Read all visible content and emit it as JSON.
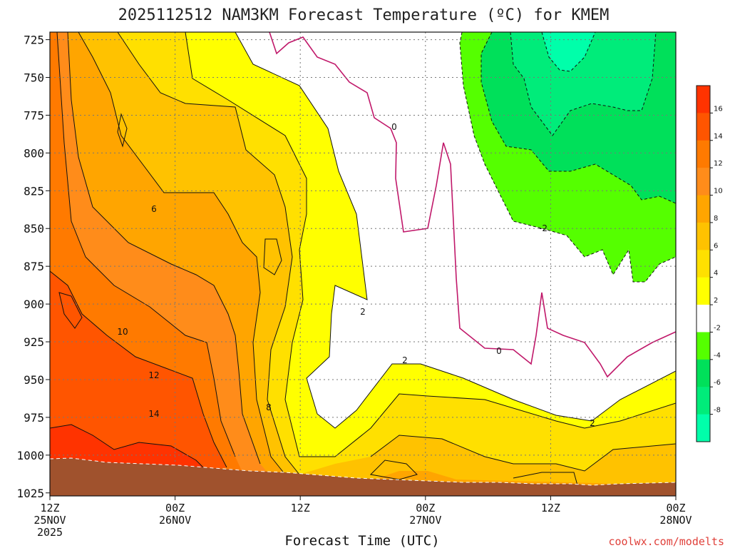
{
  "chart_data": {
    "type": "heatmap",
    "title": "2025112512 NAM3KM Forecast Temperature (ºC) for KMEM",
    "xlabel": "Forecast Time (UTC)",
    "ylabel": "",
    "credit": "coolwx.com/modelts",
    "y_ticks": [
      "725",
      "750",
      "775",
      "800",
      "825",
      "850",
      "875",
      "900",
      "925",
      "950",
      "975",
      "1000",
      "1025"
    ],
    "x_ticks": [
      {
        "line1": "12Z",
        "line2": "25NOV",
        "line3": "2025"
      },
      {
        "line1": "00Z",
        "line2": "26NOV",
        "line3": ""
      },
      {
        "line1": "12Z",
        "line2": "",
        "line3": ""
      },
      {
        "line1": "00Z",
        "line2": "27NOV",
        "line3": ""
      },
      {
        "line1": "12Z",
        "line2": "",
        "line3": ""
      },
      {
        "line1": "00Z",
        "line2": "28NOV",
        "line3": ""
      }
    ],
    "y_range_hPa": [
      720,
      1027
    ],
    "x_range_hours": [
      0,
      60
    ],
    "contour_labels": [
      "6",
      "10",
      "12",
      "14",
      "8",
      "2",
      "0",
      "2",
      "0",
      "2",
      "-2"
    ],
    "colorbar": {
      "labels": [
        "16",
        "14",
        "12",
        "10",
        "8",
        "6",
        "4",
        "2",
        "-2",
        "-4",
        "-6",
        "-8"
      ],
      "colors": [
        "#ff3300",
        "#ff5500",
        "#ff7a00",
        "#ff8c1a",
        "#ffa500",
        "#ffc200",
        "#ffe000",
        "#ffff00",
        "#ffffff",
        "#55ff00",
        "#00e05a",
        "#00ec7a",
        "#00ffaa"
      ]
    },
    "colors": {
      "t_14_16": "#ff3300",
      "t_12_14": "#ff5500",
      "t_10_12": "#ff7a00",
      "t_8_10": "#ff8c1a",
      "t_6_8": "#ffa500",
      "t_4_6": "#ffc200",
      "t_2_4": "#ffe000",
      "t_0_2": "#ffff00",
      "t_m2_0": "#ffffff",
      "t_m4_m2": "#55ff00",
      "t_m6_m4": "#00e05a",
      "t_m8_m6": "#00ec7a",
      "terrain": "#a0522d",
      "freezing_line": "#c0186a"
    },
    "grid": true
  }
}
